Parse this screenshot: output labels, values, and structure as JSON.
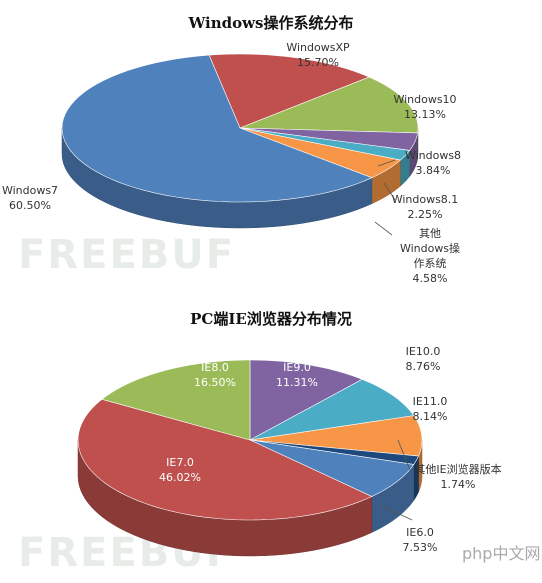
{
  "chart_data": [
    {
      "type": "pie3d",
      "title": "Windows操作系统分布",
      "categories": [
        "WindowsXP",
        "Windows10",
        "Windows8",
        "Windows8.1",
        "其他Windows操作系统",
        "Windows7"
      ],
      "values": [
        15.7,
        13.13,
        3.84,
        2.25,
        4.58,
        60.5
      ],
      "value_labels": [
        "15.70%",
        "13.13%",
        "3.84%",
        "2.25%",
        "4.58%",
        "60.50%"
      ],
      "colors": [
        "#c0504d",
        "#9bbb59",
        "#8064a2",
        "#4bacc6",
        "#f79646",
        "#4f81bd"
      ],
      "watermark": "FREEBUF"
    },
    {
      "type": "pie3d",
      "title": "PC端IE浏览器分布情况",
      "categories": [
        "IE9.0",
        "IE10.0",
        "IE11.0",
        "其他IE浏览器版本",
        "IE6.0",
        "IE7.0",
        "IE8.0"
      ],
      "values": [
        11.31,
        8.76,
        8.14,
        1.74,
        7.53,
        46.02,
        16.5
      ],
      "value_labels": [
        "11.31%",
        "8.76%",
        "8.14%",
        "1.74%",
        "7.53%",
        "46.02%",
        "16.50%"
      ],
      "colors": [
        "#8064a2",
        "#4bacc6",
        "#f79646",
        "#1f497d",
        "#4f81bd",
        "#c0504d",
        "#9bbb59"
      ],
      "watermark": "FREEBUF"
    }
  ],
  "footer_watermark": "php中文网"
}
